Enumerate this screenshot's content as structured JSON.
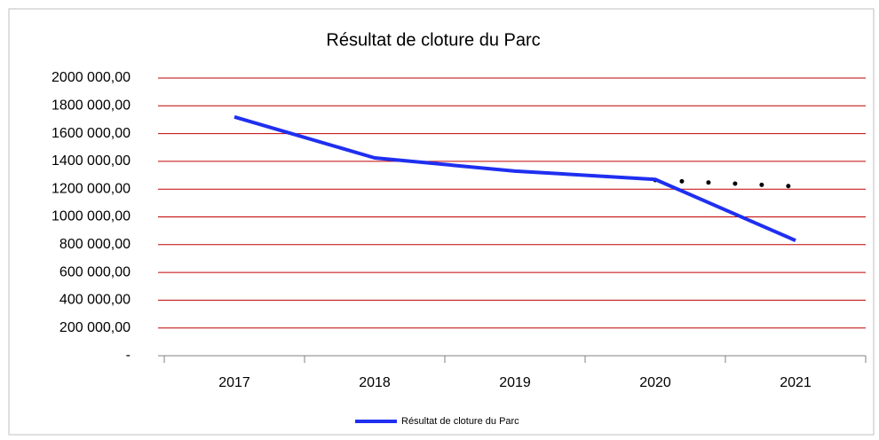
{
  "chart_data": {
    "type": "line",
    "title": "Résultat de cloture du Parc",
    "categories": [
      "2017",
      "2018",
      "2019",
      "2020",
      "2021"
    ],
    "series": [
      {
        "name": "Résultat de cloture du Parc",
        "color": "#1f2ff0",
        "values": [
          1720000,
          1425000,
          1330000,
          1270000,
          830000
        ]
      }
    ],
    "trend": {
      "color": "#000000",
      "values": [
        null,
        null,
        null,
        1265000,
        1220000
      ]
    },
    "ylim": [
      0,
      2000000
    ],
    "yticks": [
      {
        "value": 0,
        "label": "-"
      },
      {
        "value": 200000,
        "label": "200 000,00"
      },
      {
        "value": 400000,
        "label": "400 000,00"
      },
      {
        "value": 600000,
        "label": "600 000,00"
      },
      {
        "value": 800000,
        "label": "800 000,00"
      },
      {
        "value": 1000000,
        "label": "1000 000,00"
      },
      {
        "value": 1200000,
        "label": "1200 000,00"
      },
      {
        "value": 1400000,
        "label": "1400 000,00"
      },
      {
        "value": 1600000,
        "label": "1600 000,00"
      },
      {
        "value": 1800000,
        "label": "1800 000,00"
      },
      {
        "value": 2000000,
        "label": "2000 000,00"
      }
    ],
    "grid": true,
    "grid_color": "#c00000",
    "legend": "bottom"
  }
}
